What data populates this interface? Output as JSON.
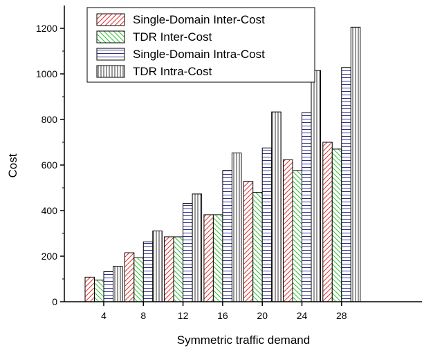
{
  "chart_data": {
    "type": "bar",
    "xlabel": "Symmetric traffic demand",
    "ylabel": "Cost",
    "ylim": [
      0,
      1300
    ],
    "yticks": [
      0,
      200,
      400,
      600,
      800,
      1000,
      1200
    ],
    "categories": [
      "4",
      "8",
      "12",
      "16",
      "20",
      "24",
      "28"
    ],
    "series": [
      {
        "name": "Single-Domain Inter-Cost",
        "pattern": "diagonal-forward",
        "color": "#e03030",
        "values": [
          108,
          215,
          285,
          382,
          528,
          623,
          700
        ]
      },
      {
        "name": "TDR Inter-Cost",
        "pattern": "diagonal-backward",
        "color": "#30c030",
        "values": [
          95,
          193,
          285,
          382,
          480,
          576,
          670
        ]
      },
      {
        "name": "Single-Domain Intra-Cost",
        "pattern": "horizontal",
        "color": "#303090",
        "values": [
          132,
          263,
          432,
          576,
          675,
          830,
          1028
        ]
      },
      {
        "name": "TDR Intra-Cost",
        "pattern": "vertical",
        "color": "#333333",
        "values": [
          156,
          311,
          473,
          653,
          833,
          1015,
          1205
        ]
      }
    ],
    "legend_position": "top-left"
  }
}
